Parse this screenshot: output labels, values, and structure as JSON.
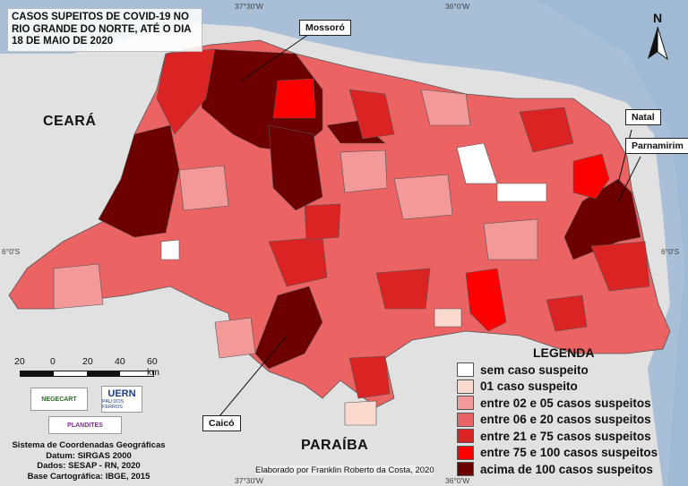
{
  "title": "CASOS SUPEITOS DE COVID-19 NO RIO GRANDE DO NORTE, ATÉ O DIA 18 DE MAIO DE 2020",
  "coordinates": {
    "top_left": "37°30'W",
    "top_right": "36°0'W",
    "bottom_left": "37°30'W",
    "bottom_right": "36°0'W",
    "left_lat": "6°0'S",
    "right_lat": "6°0'S"
  },
  "states": {
    "ceara": "CEARÁ",
    "paraiba": "PARAÍBA"
  },
  "callouts": {
    "mossoro": "Mossoró",
    "natal": "Natal",
    "parnamirim": "Parnamirim",
    "caico": "Caicó"
  },
  "north_label": "N",
  "legend": {
    "title": "LEGENDA",
    "items": [
      {
        "label": "sem caso suspeito",
        "color": "#ffffff"
      },
      {
        "label": "01 caso suspeito",
        "color": "#fbd9cf"
      },
      {
        "label": "entre 02 e 05 casos suspeitos",
        "color": "#f39999"
      },
      {
        "label": "entre 06 e 20 casos suspeitos",
        "color": "#ec6363"
      },
      {
        "label": "entre 21 e 75 casos suspeitos",
        "color": "#dc2323"
      },
      {
        "label": "entre 75 e 100 casos suspeitos",
        "color": "#ff0000"
      },
      {
        "label": "acima de 100 casos suspeitos",
        "color": "#6d0000"
      }
    ]
  },
  "scale": {
    "labels": [
      "20",
      "0",
      "20",
      "40",
      "60 km"
    ]
  },
  "logos": {
    "negecart": "NEGECART",
    "uern": "UERN",
    "uern_sub": "PAU DOS FERROS",
    "plandites": "PLANDITES"
  },
  "credits": {
    "system": "Sistema de Coordenadas Geográficas",
    "datum": "Datum: SIRGAS 2000",
    "dados": "Dados: SESAP - RN, 2020",
    "base": "Base Cartográfica: IBGE, 2015"
  },
  "author": "Elaborado por Franklin Roberto da Costa, 2020",
  "colors": {
    "ocean": "#a9bfd8",
    "neighbor": "#e1e1e1",
    "border": "#555555"
  }
}
